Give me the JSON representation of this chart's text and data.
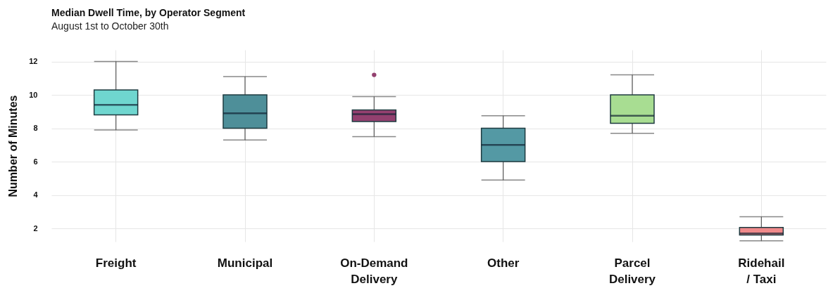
{
  "chart_data": {
    "type": "box",
    "title": "Median Dwell Time, by Operator Segment",
    "subtitle": "August 1st to October 30th",
    "ylabel": "Number of Minutes",
    "categories": [
      "Freight",
      "Municipal",
      "On-Demand Delivery",
      "Other",
      "Parcel Delivery",
      "Ridehail / Taxi"
    ],
    "colors": [
      "#6fd6cf",
      "#4e8f99",
      "#93406f",
      "#5499a4",
      "#a8dd92",
      "#f0898a"
    ],
    "boxes": [
      {
        "low": 7.9,
        "q1": 8.8,
        "median": 9.4,
        "q3": 10.3,
        "high": 12
      },
      {
        "low": 7.3,
        "q1": 8.0,
        "median": 8.9,
        "q3": 10.0,
        "high": 11.1
      },
      {
        "low": 7.5,
        "q1": 8.4,
        "median": 8.85,
        "q3": 9.1,
        "high": 9.9,
        "outliers": [
          11.2
        ]
      },
      {
        "low": 4.9,
        "q1": 6.0,
        "median": 7.0,
        "q3": 8.0,
        "high": 8.75
      },
      {
        "low": 7.7,
        "q1": 8.3,
        "median": 8.75,
        "q3": 10.0,
        "high": 11.2
      },
      {
        "low": 1.25,
        "q1": 1.6,
        "median": 1.7,
        "q3": 2.05,
        "high": 2.7
      }
    ],
    "ylim": [
      1.2,
      12.7
    ],
    "yticks": [
      2,
      4,
      6,
      8,
      10,
      12
    ],
    "grid": true
  }
}
